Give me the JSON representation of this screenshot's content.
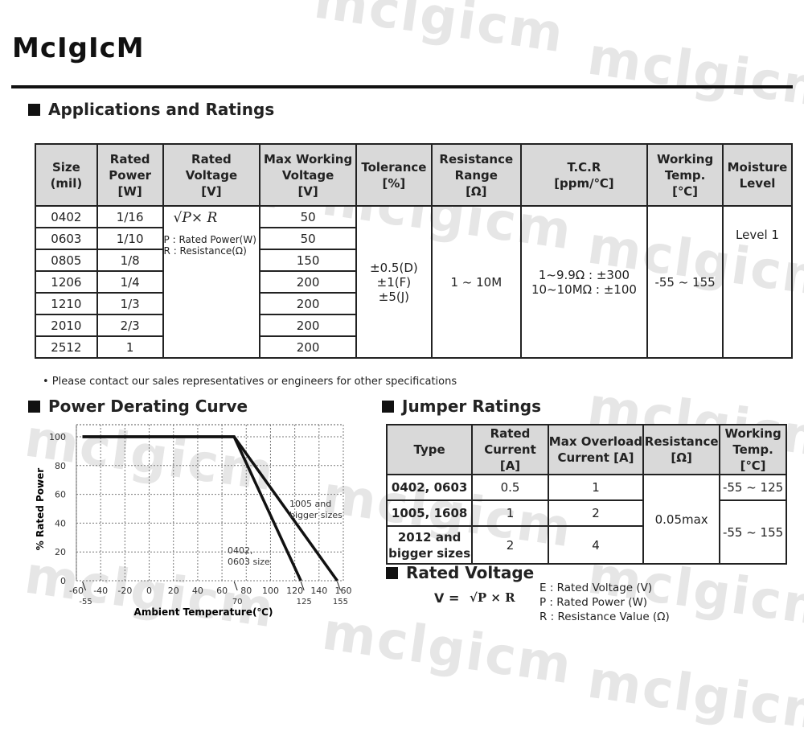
{
  "brand": {
    "logo": "McIgIcM",
    "watermark": "mclgicm"
  },
  "applications": {
    "title": "Applications and Ratings",
    "headers": [
      "Size\n(mil)",
      "Rated\nPower\n[W]",
      "Rated Voltage\n[V]",
      "Max Working\nVoltage\n[V]",
      "Tolerance\n[%]",
      "Resistance\nRange\n[Ω]",
      "T.C.R\n[ppm/℃]",
      "Working\nTemp.\n[℃]",
      "Moisture\nLevel"
    ],
    "rows": [
      {
        "size": "0402",
        "power": "1/16",
        "max_v": "50"
      },
      {
        "size": "0603",
        "power": "1/10",
        "max_v": "50"
      },
      {
        "size": "0805",
        "power": "1/8",
        "max_v": "150"
      },
      {
        "size": "1206",
        "power": "1/4",
        "max_v": "200"
      },
      {
        "size": "1210",
        "power": "1/3",
        "max_v": "200"
      },
      {
        "size": "2010",
        "power": "2/3",
        "max_v": "200"
      },
      {
        "size": "2512",
        "power": "1",
        "max_v": "200"
      }
    ],
    "rated_voltage_formula": "√P× R",
    "rated_voltage_legend": [
      "P : Rated Power(W)",
      "R : Resistance(Ω)"
    ],
    "tolerance": [
      "±0.5(D)",
      "±1(F)",
      "±5(J)"
    ],
    "resistance_range": "1 ~ 10M",
    "tcr": [
      "1~9.9Ω : ±300",
      "10~10MΩ : ±100"
    ],
    "working_temp": "-55 ~ 155",
    "moisture": "Level 1",
    "note": "• Please contact our sales representatives or engineers for other specifications"
  },
  "derating": {
    "title": "Power Derating Curve"
  },
  "chart_data": {
    "type": "line",
    "xlabel": "Ambient Temperature(℃)",
    "ylabel": "% Rated Power",
    "xlim": [
      -60,
      160
    ],
    "ylim": [
      0,
      100
    ],
    "xticks": [
      -60,
      -40,
      -20,
      0,
      20,
      40,
      60,
      80,
      100,
      120,
      140,
      160
    ],
    "yticks": [
      0,
      20,
      40,
      60,
      80,
      100
    ],
    "grid": true,
    "markers": [
      -55,
      70,
      125,
      155
    ],
    "series": [
      {
        "name": "0402,\n0603 size",
        "x": [
          -55,
          70,
          125
        ],
        "y": [
          100,
          100,
          0
        ]
      },
      {
        "name": "1005 and\nbigger sizes",
        "x": [
          -55,
          70,
          155
        ],
        "y": [
          100,
          100,
          0
        ]
      }
    ]
  },
  "jumper": {
    "title": "Jumper Ratings",
    "headers": [
      "Type",
      "Rated\nCurrent [A]",
      "Max Overload\nCurrent [A]",
      "Resistance\n[Ω]",
      "Working\nTemp.[℃]"
    ],
    "rows": [
      {
        "type": "0402, 0603",
        "current": "0.5",
        "overload": "1"
      },
      {
        "type": "1005, 1608",
        "current": "1",
        "overload": "2"
      },
      {
        "type": "2012 and\nbigger sizes",
        "current": "2",
        "overload": "4"
      }
    ],
    "resistance": "0.05max",
    "temps": [
      "-55 ~ 125",
      "-55 ~ 155"
    ]
  },
  "rated_voltage": {
    "title": "Rated Voltage",
    "lhs": "V =",
    "formula": "√P × R",
    "legend": [
      "E : Rated Voltage (V)",
      "P : Rated Power (W)",
      "R : Resistance Value (Ω)"
    ]
  }
}
